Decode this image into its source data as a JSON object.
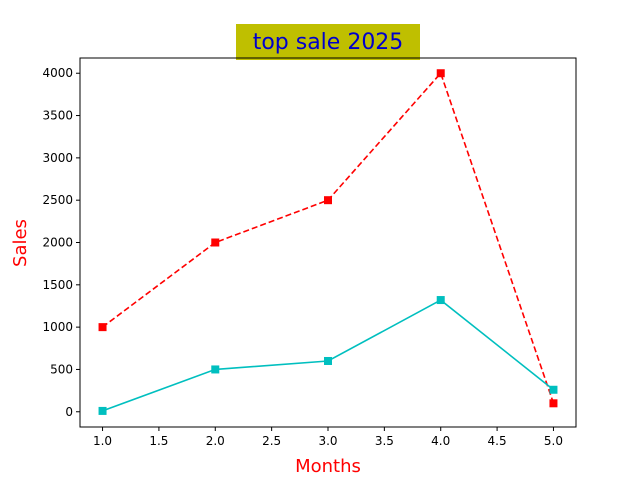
{
  "chart_data": {
    "type": "line",
    "title": "top sale 2025",
    "xlabel": "Months",
    "ylabel": "Sales",
    "xlim": [
      0.8,
      5.2
    ],
    "ylim": [
      -180,
      4180
    ],
    "xticks": [
      1.0,
      1.5,
      2.0,
      2.5,
      3.0,
      3.5,
      4.0,
      4.5,
      5.0
    ],
    "xtick_labels": [
      "1.0",
      "1.5",
      "2.0",
      "2.5",
      "3.0",
      "3.5",
      "4.0",
      "4.5",
      "5.0"
    ],
    "yticks": [
      0,
      500,
      1000,
      1500,
      2000,
      2500,
      3000,
      3500,
      4000
    ],
    "ytick_labels": [
      "0",
      "500",
      "1000",
      "1500",
      "2000",
      "2500",
      "3000",
      "3500",
      "4000"
    ],
    "grid": false,
    "series": [
      {
        "x": [
          1,
          2,
          3,
          4,
          5
        ],
        "values": [
          1000,
          2000,
          2500,
          4000,
          100
        ],
        "color": "#ff0000",
        "line_style": "dashed",
        "marker": "square"
      },
      {
        "x": [
          1,
          2,
          3,
          4,
          5
        ],
        "values": [
          10,
          500,
          600,
          1320,
          260
        ],
        "color": "#00bfbf",
        "line_style": "solid",
        "marker": "square"
      }
    ],
    "title_color": "#0000cc",
    "title_background": "#bfbf00",
    "xlabel_color": "#ff0000",
    "ylabel_color": "#ff0000"
  }
}
